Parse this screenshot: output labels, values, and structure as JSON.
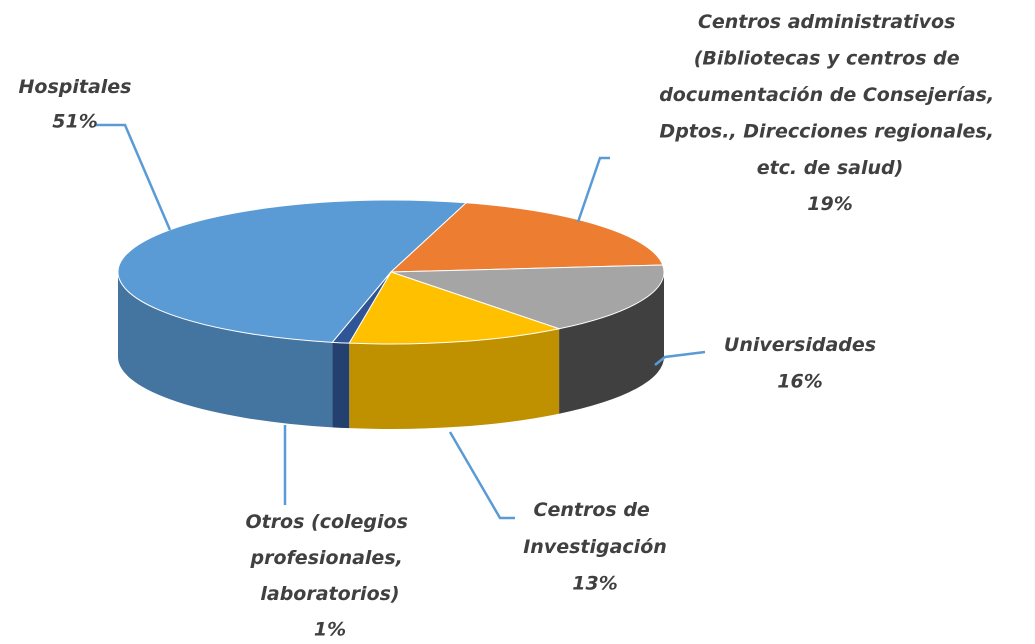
{
  "chart_data": {
    "type": "pie",
    "categories": [
      "Hospitales",
      "Centros administrativos (Bibliotecas y centros de documentación de Consejerías, Dptos., Direcciones regionales, etc. de salud)",
      "Universidades",
      "Centros de Investigación",
      "Otros (colegios profesionales, laboratorios)"
    ],
    "values": [
      51,
      19,
      16,
      13,
      1
    ],
    "value_labels": [
      "51%",
      "19%",
      "16%",
      "13%",
      "1%"
    ],
    "colors": [
      "#5b9bd5",
      "#ed7d31",
      "#a5a5a5",
      "#ffc000",
      "#2f5597"
    ]
  }
}
